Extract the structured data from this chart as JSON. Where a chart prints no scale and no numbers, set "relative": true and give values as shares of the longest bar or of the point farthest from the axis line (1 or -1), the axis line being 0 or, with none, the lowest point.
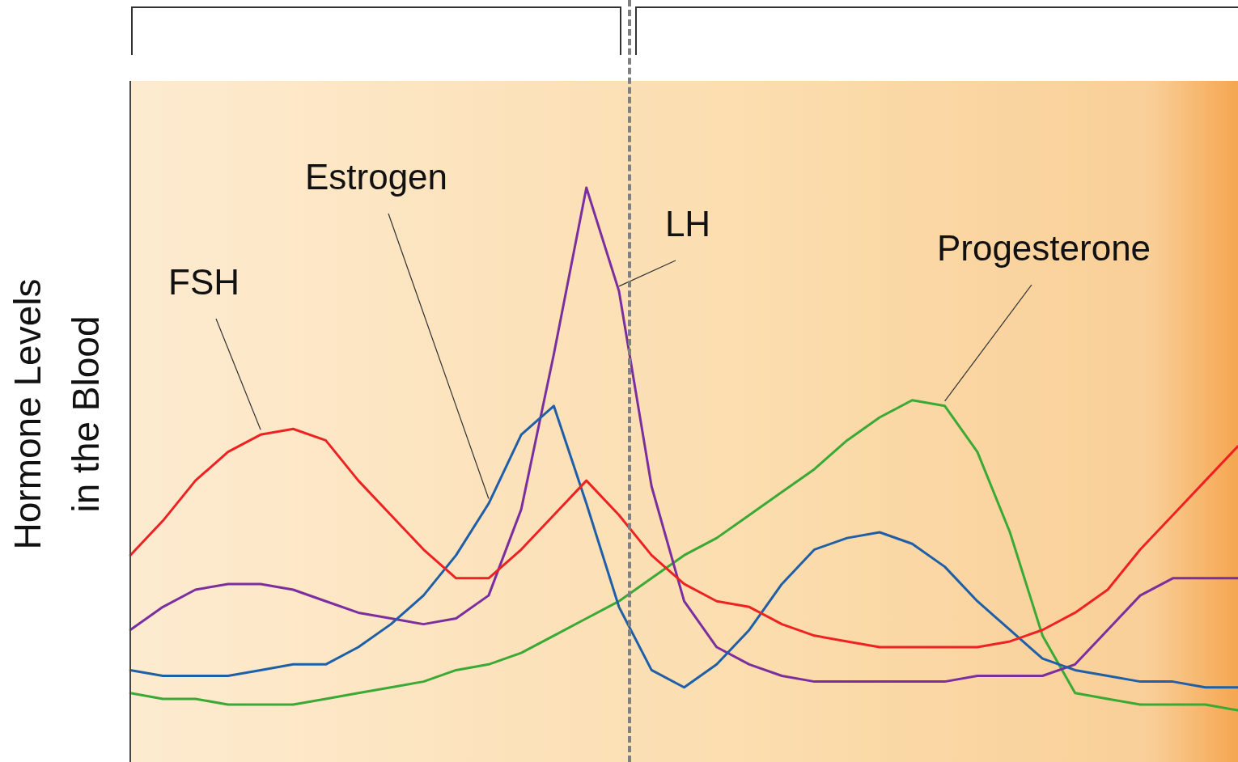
{
  "chart_data": {
    "type": "line",
    "ylabel": "Hormone Levels\nin the Blood",
    "relative": true,
    "tick_labels": false,
    "legend": false,
    "marker": "none",
    "categories": [
      null,
      null,
      null,
      null,
      null,
      null,
      null,
      null,
      null,
      null,
      null,
      null,
      null,
      null,
      null,
      null,
      null,
      null,
      null,
      null,
      null,
      null,
      null,
      null,
      null,
      null,
      null,
      null,
      null,
      null,
      null,
      null,
      null,
      null,
      null
    ],
    "series": [
      {
        "name": "FSH",
        "color": "#ee2222",
        "values": [
          0.36,
          0.42,
          0.49,
          0.54,
          0.57,
          0.58,
          0.56,
          0.49,
          0.43,
          0.37,
          0.32,
          0.32,
          0.37,
          0.43,
          0.49,
          0.43,
          0.36,
          0.31,
          0.28,
          0.27,
          0.24,
          0.22,
          0.21,
          0.2,
          0.2,
          0.2,
          0.2,
          0.21,
          0.23,
          0.26,
          0.3,
          0.37,
          0.43,
          0.49,
          0.55
        ]
      },
      {
        "name": "Estrogen",
        "color": "#1f5fa8",
        "values": [
          0.16,
          0.15,
          0.15,
          0.15,
          0.16,
          0.17,
          0.17,
          0.2,
          0.24,
          0.29,
          0.36,
          0.45,
          0.57,
          0.62,
          0.45,
          0.27,
          0.16,
          0.13,
          0.17,
          0.23,
          0.31,
          0.37,
          0.39,
          0.4,
          0.38,
          0.34,
          0.28,
          0.23,
          0.18,
          0.16,
          0.15,
          0.14,
          0.14,
          0.13,
          0.13
        ]
      },
      {
        "name": "LH",
        "color": "#7b2e9e",
        "values": [
          0.23,
          0.27,
          0.3,
          0.31,
          0.31,
          0.3,
          0.28,
          0.26,
          0.25,
          0.24,
          0.25,
          0.29,
          0.44,
          0.71,
          1,
          0.82,
          0.48,
          0.28,
          0.2,
          0.17,
          0.15,
          0.14,
          0.14,
          0.14,
          0.14,
          0.14,
          0.15,
          0.15,
          0.15,
          0.17,
          0.23,
          0.29,
          0.32,
          0.32,
          0.32
        ]
      },
      {
        "name": "Progesterone",
        "color": "#3aa935",
        "values": [
          0.12,
          0.11,
          0.11,
          0.1,
          0.1,
          0.1,
          0.11,
          0.12,
          0.13,
          0.14,
          0.16,
          0.17,
          0.19,
          0.22,
          0.25,
          0.28,
          0.32,
          0.36,
          0.39,
          0.43,
          0.47,
          0.51,
          0.56,
          0.6,
          0.63,
          0.62,
          0.54,
          0.4,
          0.22,
          0.12,
          0.11,
          0.1,
          0.1,
          0.1,
          0.09
        ]
      }
    ]
  }
}
